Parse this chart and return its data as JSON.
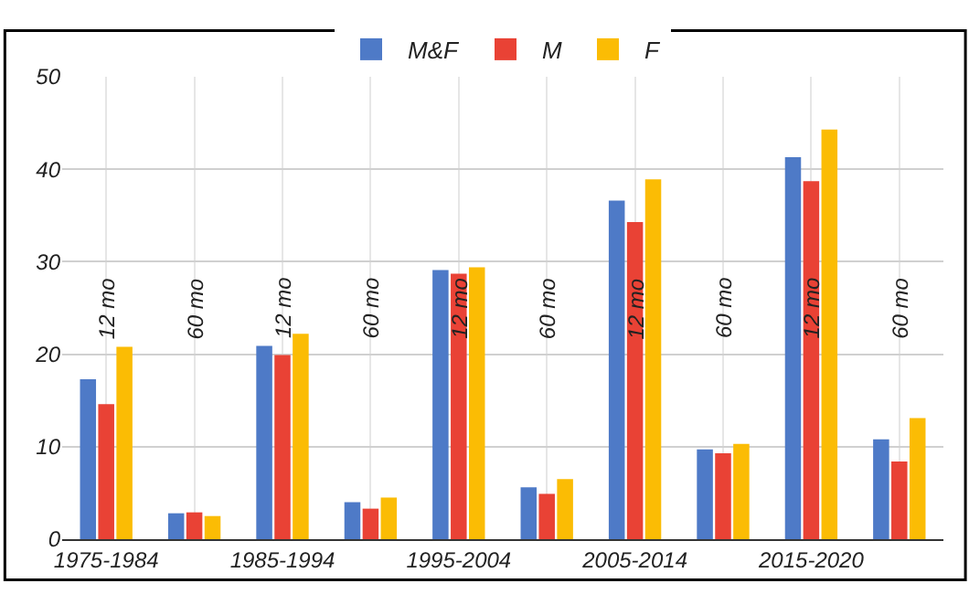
{
  "chart_data": {
    "type": "bar",
    "categories": [
      "1975-1984",
      null,
      "1985-1994",
      null,
      "1995-2004",
      null,
      "2005-2014",
      null,
      "2015-2020",
      null
    ],
    "series": [
      {
        "name": "M&F",
        "color": "#4e7ac7",
        "values": [
          17.3,
          2.8,
          20.9,
          4.0,
          29.1,
          5.6,
          36.6,
          9.7,
          41.3,
          10.8
        ]
      },
      {
        "name": "M",
        "color": "#e94235",
        "values": [
          14.6,
          2.9,
          19.9,
          3.3,
          28.7,
          4.9,
          34.3,
          9.3,
          38.7,
          8.4
        ]
      },
      {
        "name": "F",
        "color": "#fbbc04",
        "values": [
          20.8,
          2.5,
          22.2,
          4.5,
          29.4,
          6.5,
          38.9,
          10.3,
          44.3,
          13.1
        ]
      }
    ],
    "annotations": [
      "12 mo",
      "60 mo",
      "12 mo",
      "60 mo",
      "12 mo",
      "60 mo",
      "12 mo",
      "60 mo",
      "12 mo",
      "60 mo"
    ],
    "ylim": [
      0,
      50
    ],
    "yticks": [
      0,
      10,
      20,
      30,
      40,
      50
    ],
    "grid": true,
    "legend": "top"
  }
}
